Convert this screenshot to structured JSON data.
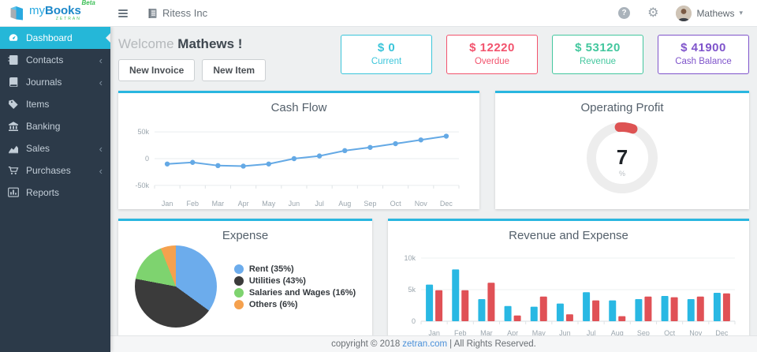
{
  "topbar": {
    "logo": {
      "my": "my",
      "books": "Books",
      "beta": "Beta",
      "brand_sub": "ZETRAN"
    },
    "company": "Ritess Inc",
    "help_glyph": "?",
    "gear_glyph": "⚙",
    "user": "Mathews",
    "caret_glyph": "▾"
  },
  "sidebar": {
    "active_color": "#25b7d8",
    "items": [
      {
        "label": "Dashboard",
        "icon": "dashboard-icon",
        "active": true,
        "chevron": ""
      },
      {
        "label": "Contacts",
        "icon": "contacts-icon",
        "active": false,
        "chevron": "‹"
      },
      {
        "label": "Journals",
        "icon": "journals-icon",
        "active": false,
        "chevron": "‹"
      },
      {
        "label": "Items",
        "icon": "items-icon",
        "active": false,
        "chevron": ""
      },
      {
        "label": "Banking",
        "icon": "banking-icon",
        "active": false,
        "chevron": ""
      },
      {
        "label": "Sales",
        "icon": "sales-icon",
        "active": false,
        "chevron": "‹"
      },
      {
        "label": "Purchases",
        "icon": "purchases-icon",
        "active": false,
        "chevron": "‹"
      },
      {
        "label": "Reports",
        "icon": "reports-icon",
        "active": false,
        "chevron": ""
      }
    ]
  },
  "welcome": {
    "greeting": "Welcome",
    "name": "Mathews !",
    "new_invoice": "New Invoice",
    "new_item": "New Item"
  },
  "stats": [
    {
      "value": "$ 0",
      "label": "Current",
      "color": "#3bc5da"
    },
    {
      "value": "$ 12220",
      "label": "Overdue",
      "color": "#f2536d"
    },
    {
      "value": "$ 53120",
      "label": "Revenue",
      "color": "#43c79e"
    },
    {
      "value": "$ 41900",
      "label": "Cash Balance",
      "color": "#7f54cb"
    }
  ],
  "chart_data": [
    {
      "type": "line",
      "title": "Cash Flow",
      "x": [
        "Jan",
        "Feb",
        "Mar",
        "Apr",
        "May",
        "Jun",
        "Jul",
        "Aug",
        "Sep",
        "Oct",
        "Nov",
        "Dec"
      ],
      "series": [
        {
          "name": "Cash Flow",
          "values_k": [
            -10,
            -7,
            -13,
            -14,
            -10,
            0,
            5,
            15,
            21,
            28,
            35,
            42
          ]
        }
      ],
      "yticks": [
        "50k",
        "0",
        "-50k"
      ],
      "ylim_k": [
        -62,
        62
      ],
      "line_color": "#64a9e5",
      "grid": true,
      "legend_position": "none"
    },
    {
      "type": "gauge",
      "title": "Operating Profit",
      "value": 7,
      "unit": "%",
      "arc_color": "#dd5353",
      "track_color": "#ededed"
    },
    {
      "type": "pie",
      "title": "Expense",
      "labels": [
        "Rent",
        "Utilities",
        "Salaries and Wages",
        "Others"
      ],
      "values": [
        35,
        43,
        16,
        6
      ],
      "colors": [
        "#6cacec",
        "#3b3b3b",
        "#7ed36f",
        "#f5a14e"
      ],
      "legend_position": "right"
    },
    {
      "type": "bar",
      "title": "Revenue and Expense",
      "categories": [
        "Jan",
        "Feb",
        "Mar",
        "Apr",
        "May",
        "Jun",
        "Jul",
        "Aug",
        "Sep",
        "Oct",
        "Nov",
        "Dec"
      ],
      "series": [
        {
          "name": "Revenue",
          "color": "#29b8e3",
          "values_k": [
            5.8,
            8.2,
            3.5,
            2.4,
            2.3,
            2.8,
            4.6,
            3.3,
            3.5,
            4.0,
            3.5,
            4.5
          ]
        },
        {
          "name": "Expense",
          "color": "#e05156",
          "values_k": [
            4.9,
            4.9,
            6.1,
            0.9,
            3.9,
            1.1,
            3.3,
            0.8,
            3.9,
            3.8,
            3.9,
            4.4
          ]
        }
      ],
      "yticks": [
        "10k",
        "5k",
        "0"
      ],
      "ylim_k": [
        0,
        11
      ],
      "legend_position": "none"
    }
  ],
  "footer": {
    "pre": "copyright © 2018",
    "link": "zetran.com",
    "post": "| All Rights Reserved."
  }
}
